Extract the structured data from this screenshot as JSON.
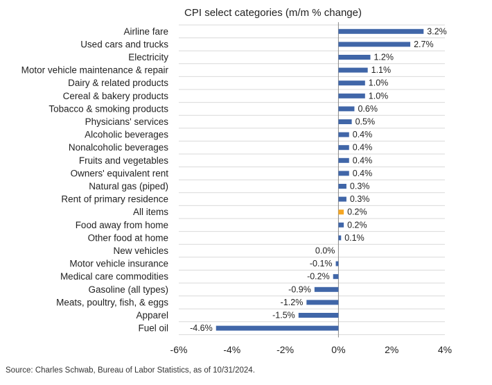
{
  "chart_data": {
    "type": "bar",
    "orientation": "horizontal",
    "title": "CPI select categories (m/m % change)",
    "categories": [
      "Airline fare",
      "Used cars and trucks",
      "Electricity",
      "Motor vehicle maintenance & repair",
      "Dairy & related products",
      "Cereal & bakery products",
      "Tobacco & smoking products",
      "Physicians' services",
      "Alcoholic beverages",
      "Nonalcoholic beverages",
      "Fruits and vegetables",
      "Owners' equivalent rent",
      "Natural gas (piped)",
      "Rent of primary residence",
      "All items",
      "Food away from home",
      "Other food at home",
      "New vehicles",
      "Motor vehicle insurance",
      "Medical care commodities",
      "Gasoline (all types)",
      "Meats, poultry, fish, & eggs",
      "Apparel",
      "Fuel oil"
    ],
    "values": [
      3.2,
      2.7,
      1.2,
      1.1,
      1.0,
      1.0,
      0.6,
      0.5,
      0.4,
      0.4,
      0.4,
      0.4,
      0.3,
      0.3,
      0.2,
      0.2,
      0.1,
      0.0,
      -0.1,
      -0.2,
      -0.9,
      -1.2,
      -1.5,
      -4.6
    ],
    "value_labels": [
      "3.2%",
      "2.7%",
      "1.2%",
      "1.1%",
      "1.0%",
      "1.0%",
      "0.6%",
      "0.5%",
      "0.4%",
      "0.4%",
      "0.4%",
      "0.4%",
      "0.3%",
      "0.3%",
      "0.2%",
      "0.2%",
      "0.1%",
      "0.0%",
      "-0.1%",
      "-0.2%",
      "-0.9%",
      "-1.2%",
      "-1.5%",
      "-4.6%"
    ],
    "highlight_category": "All items",
    "xlim": [
      -6,
      4
    ],
    "x_ticks": [
      -6,
      -4,
      -2,
      0,
      2,
      4
    ],
    "x_tick_labels": [
      "-6%",
      "-4%",
      "-2%",
      "0%",
      "2%",
      "4%"
    ],
    "grid": "horizontal separators",
    "colors": {
      "bar": "#4066a8",
      "highlight": "#f5a623",
      "grid": "#d9d9d9",
      "zero_line": "#888888"
    }
  },
  "source": "Source: Charles Schwab, Bureau of Labor Statistics, as of 10/31/2024."
}
